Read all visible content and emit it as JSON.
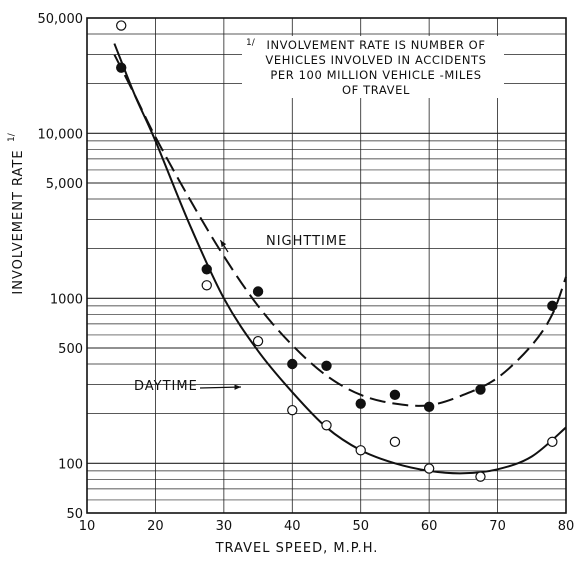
{
  "chart_data": {
    "type": "scatter",
    "xlabel": "TRAVEL SPEED, M.P.H.",
    "ylabel": "INVOLVEMENT RATE",
    "ylabel_marker": "1/",
    "xlim": [
      10,
      80
    ],
    "ylim": [
      50,
      50000
    ],
    "yscale": "log",
    "x_ticks": [
      "10",
      "20",
      "30",
      "40",
      "50",
      "60",
      "70",
      "80"
    ],
    "y_ticks": [
      {
        "value": 50,
        "label": "50"
      },
      {
        "value": 100,
        "label": "100"
      },
      {
        "value": 500,
        "label": "500"
      },
      {
        "value": 1000,
        "label": "1000"
      },
      {
        "value": 5000,
        "label": "5,000"
      },
      {
        "value": 10000,
        "label": "10,000"
      },
      {
        "value": 50000,
        "label": "50,000"
      }
    ],
    "grid": true,
    "note": {
      "marker": "1/",
      "lines": [
        "INVOLVEMENT RATE IS NUMBER OF",
        "VEHICLES INVOLVED IN ACCIDENTS",
        "PER 100 MILLION VEHICLE -MILES",
        "OF TRAVEL"
      ]
    },
    "series": [
      {
        "name": "NIGHTTIME",
        "marker": "filled-circle",
        "line_style": "dashed",
        "points": [
          {
            "x": 15,
            "y": 25000
          },
          {
            "x": 27.5,
            "y": 1500
          },
          {
            "x": 35,
            "y": 1100
          },
          {
            "x": 40,
            "y": 400
          },
          {
            "x": 45,
            "y": 390
          },
          {
            "x": 50,
            "y": 230
          },
          {
            "x": 55,
            "y": 260
          },
          {
            "x": 60,
            "y": 220
          },
          {
            "x": 67.5,
            "y": 280
          },
          {
            "x": 78,
            "y": 900
          }
        ],
        "curve": [
          {
            "x": 14,
            "y": 30000
          },
          {
            "x": 17,
            "y": 17000
          },
          {
            "x": 20,
            "y": 9500
          },
          {
            "x": 25,
            "y": 4000
          },
          {
            "x": 30,
            "y": 1800
          },
          {
            "x": 35,
            "y": 900
          },
          {
            "x": 40,
            "y": 520
          },
          {
            "x": 45,
            "y": 340
          },
          {
            "x": 50,
            "y": 260
          },
          {
            "x": 55,
            "y": 230
          },
          {
            "x": 60,
            "y": 225
          },
          {
            "x": 65,
            "y": 260
          },
          {
            "x": 70,
            "y": 330
          },
          {
            "x": 75,
            "y": 520
          },
          {
            "x": 78,
            "y": 800
          },
          {
            "x": 80,
            "y": 1350
          }
        ]
      },
      {
        "name": "DAYTIME",
        "marker": "open-circle",
        "line_style": "solid",
        "points": [
          {
            "x": 15,
            "y": 45000
          },
          {
            "x": 27.5,
            "y": 1200
          },
          {
            "x": 35,
            "y": 550
          },
          {
            "x": 40,
            "y": 210
          },
          {
            "x": 45,
            "y": 170
          },
          {
            "x": 50,
            "y": 120
          },
          {
            "x": 55,
            "y": 135
          },
          {
            "x": 60,
            "y": 93
          },
          {
            "x": 67.5,
            "y": 83
          },
          {
            "x": 78,
            "y": 135
          }
        ],
        "curve": [
          {
            "x": 14,
            "y": 35000
          },
          {
            "x": 17,
            "y": 17000
          },
          {
            "x": 20,
            "y": 9000
          },
          {
            "x": 25,
            "y": 2800
          },
          {
            "x": 30,
            "y": 1000
          },
          {
            "x": 35,
            "y": 480
          },
          {
            "x": 40,
            "y": 270
          },
          {
            "x": 45,
            "y": 165
          },
          {
            "x": 50,
            "y": 120
          },
          {
            "x": 55,
            "y": 100
          },
          {
            "x": 60,
            "y": 90
          },
          {
            "x": 65,
            "y": 87
          },
          {
            "x": 70,
            "y": 92
          },
          {
            "x": 75,
            "y": 110
          },
          {
            "x": 80,
            "y": 165
          }
        ]
      }
    ],
    "series_labels": [
      {
        "series": "NIGHTTIME",
        "text": "NIGHTTIME",
        "anchor": {
          "x": 29.5,
          "y": 2250
        }
      },
      {
        "series": "DAYTIME",
        "text": "DAYTIME",
        "anchor": {
          "x": 32.5,
          "y": 290
        }
      }
    ]
  }
}
